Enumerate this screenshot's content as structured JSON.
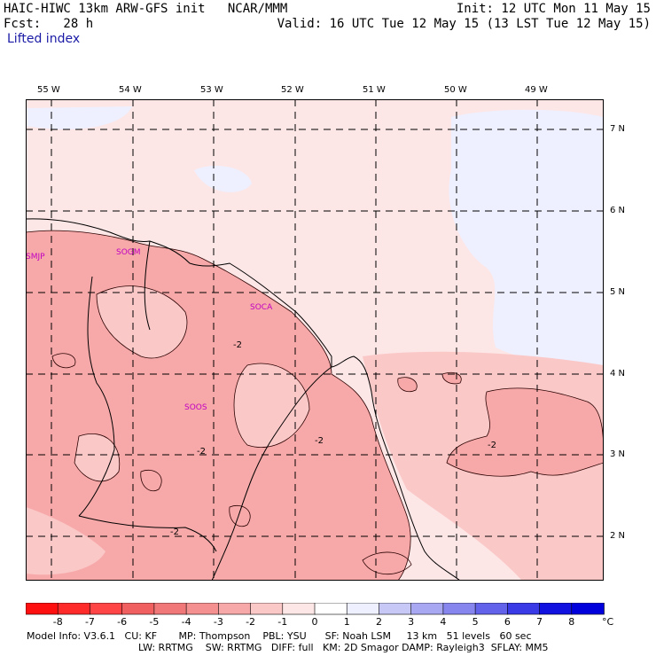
{
  "header": {
    "line1_left": "HAIC-HIWC 13km ARW-GFS init   NCAR/MMM",
    "line2_left": "Fcst:   28 h",
    "line1_right": "Init: 12 UTC Mon 11 May 15",
    "line2_right": "Valid: 16 UTC Tue 12 May 15 (13 LST Tue 12 May 15)",
    "field": "Lifted index"
  },
  "map": {
    "lon_labels": [
      "55 W",
      "54 W",
      "53 W",
      "52 W",
      "51 W",
      "50 W",
      "49 W"
    ],
    "lat_labels": [
      "7 N",
      "6 N",
      "5 N",
      "4 N",
      "3 N",
      "2 N"
    ],
    "stations": [
      "SMJP",
      "SOGM",
      "SOCA",
      "SOOS"
    ],
    "contour_labels": [
      "-2",
      "-2",
      "-2",
      "-2",
      "-2"
    ]
  },
  "colorbar": {
    "labels": [
      "-8",
      "-7",
      "-6",
      "-5",
      "-4",
      "-3",
      "-2",
      "-1",
      "0",
      "1",
      "2",
      "3",
      "4",
      "5",
      "6",
      "7",
      "8"
    ],
    "unit": "°C",
    "colors": [
      "#ff1010",
      "#ff2a2a",
      "#ff4545",
      "#f06060",
      "#f07878",
      "#f49090",
      "#f7a9a9",
      "#fbc8c8",
      "#fde6e6",
      "#ffffff",
      "#eef0ff",
      "#c8c8f6",
      "#a8a8f2",
      "#8686ee",
      "#6262ea",
      "#3a3ae6",
      "#1212e0",
      "#0000dd"
    ]
  },
  "footer": {
    "line1": "Model Info: V3.6.1   CU: KF       MP: Thompson    PBL: YSU      SF: Noah LSM     13 km   51 levels   60 sec",
    "line2": "LW: RRTMG    SW: RRTMG   DIFF: full   KM: 2D Smagor DAMP: Rayleigh3  SFLAY: MM5"
  }
}
